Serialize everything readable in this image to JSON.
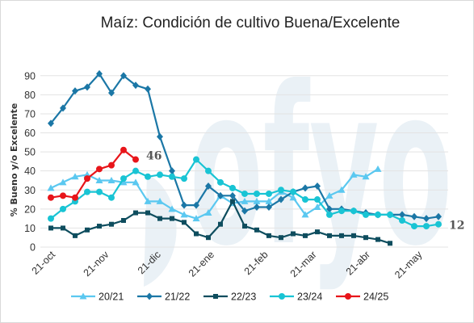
{
  "chart_data": {
    "type": "line",
    "title": "Maíz: Condición de cultivo Buena/Excelente",
    "ylabel": "% Bueno y/o Excelente",
    "xlabel": "",
    "ylim": [
      0,
      95
    ],
    "yticks": [
      0,
      10,
      20,
      30,
      40,
      50,
      60,
      70,
      80,
      90
    ],
    "xlim": [
      0,
      32
    ],
    "xtick_labels": [
      {
        "label": "21-oct",
        "x": 0
      },
      {
        "label": "21-nov",
        "x": 4.43
      },
      {
        "label": "21-dic",
        "x": 8.71
      },
      {
        "label": "21-ene",
        "x": 13.14
      },
      {
        "label": "21-feb",
        "x": 17.57
      },
      {
        "label": "21-mar",
        "x": 21.57
      },
      {
        "label": "21-abr",
        "x": 26
      },
      {
        "label": "21-may",
        "x": 30.29
      }
    ],
    "grid": true,
    "legend_position": "bottom",
    "watermark": "ofyo",
    "series": [
      {
        "name": "20/21",
        "color": "#5bc8f0",
        "marker": "triangle",
        "values": [
          31,
          34,
          37,
          38,
          35,
          35,
          34,
          34,
          24,
          24,
          20,
          17,
          15,
          18,
          27,
          23,
          24,
          24,
          24,
          29,
          26,
          17,
          21,
          27,
          30,
          38,
          37,
          41
        ]
      },
      {
        "name": "21/22",
        "color": "#1b77a6",
        "marker": "diamond",
        "values": [
          65,
          73,
          82,
          84,
          91,
          81,
          90,
          85,
          83,
          58,
          40,
          22,
          22,
          32,
          27,
          27,
          19,
          21,
          21,
          25,
          29,
          31,
          32,
          20,
          20,
          19,
          18,
          17,
          17,
          17,
          16,
          15,
          16
        ]
      },
      {
        "name": "22/23",
        "color": "#0e4d5e",
        "marker": "square",
        "values": [
          10,
          10,
          6,
          9,
          11,
          12,
          14,
          18,
          18,
          15,
          15,
          13,
          7,
          5,
          12,
          24,
          11,
          9,
          6,
          5,
          7,
          6,
          8,
          6,
          6,
          6,
          5,
          4,
          2
        ]
      },
      {
        "name": "23/24",
        "color": "#19c4d4",
        "marker": "circle",
        "values": [
          15,
          20,
          24,
          29,
          29,
          26,
          36,
          40,
          37,
          38,
          37,
          36,
          46,
          40,
          34,
          31,
          28,
          28,
          28,
          30,
          29,
          25,
          25,
          17,
          19,
          19,
          17,
          17,
          17,
          14,
          11,
          11,
          12
        ]
      },
      {
        "name": "24/25",
        "color": "#e8151a",
        "marker": "circle",
        "values": [
          26,
          27,
          26,
          36,
          41,
          43,
          51,
          46
        ]
      }
    ],
    "annotations": [
      {
        "text": "46",
        "series": "24/25"
      },
      {
        "text": "12",
        "series": "23/24"
      }
    ]
  }
}
